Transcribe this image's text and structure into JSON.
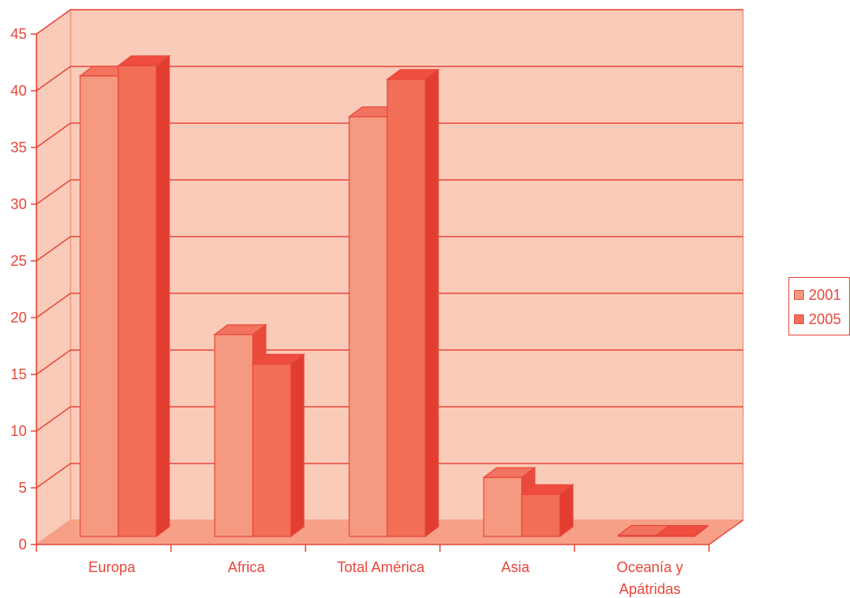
{
  "chart_data": {
    "type": "bar",
    "categories": [
      "Europa",
      "Africa",
      "Total América",
      "Asia",
      "Oceanía y Apátridas"
    ],
    "category_label_lines": [
      [
        "Europa"
      ],
      [
        "Africa"
      ],
      [
        "Total América"
      ],
      [
        "Asia"
      ],
      [
        "Oceanía y",
        "Apátridas"
      ]
    ],
    "series": [
      {
        "name": "2001",
        "values": [
          40.6,
          17.8,
          37.0,
          5.2,
          0.1
        ],
        "color": "#f59a80",
        "top_color": "#f2735f",
        "side_color": "#e84b3c"
      },
      {
        "name": "2005",
        "values": [
          41.5,
          15.2,
          40.3,
          3.7,
          0.1
        ],
        "color": "#f26e57",
        "top_color": "#ef4d3f",
        "side_color": "#e13d31"
      }
    ],
    "ylim": [
      0,
      45
    ],
    "y_ticks": [
      0,
      5,
      10,
      15,
      20,
      25,
      30,
      35,
      40,
      45
    ],
    "grid": true,
    "legend_position": "right",
    "colors": {
      "axis": "#e8473a",
      "back_wall": "#facbb9",
      "floor": "#f7a087",
      "grid": "#e8473a"
    }
  }
}
